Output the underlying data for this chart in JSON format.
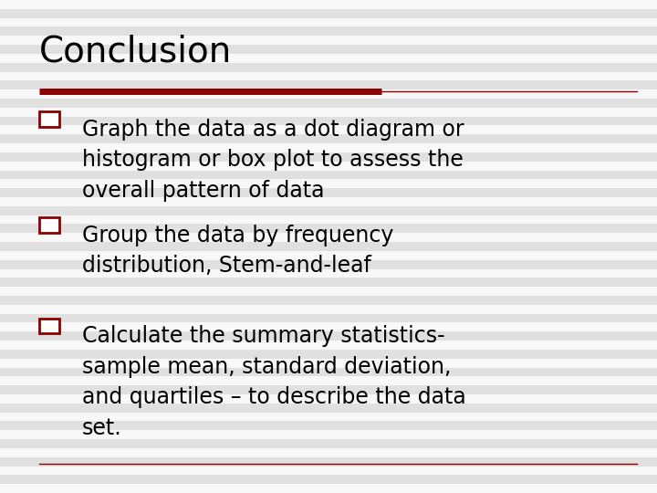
{
  "title": "Conclusion",
  "background_color": "#f0f0f0",
  "title_color": "#000000",
  "title_fontsize": 28,
  "divider_thick_color": "#8B0000",
  "divider_thin_color": "#8B0000",
  "bullet_box_edge_color": "#8B0000",
  "bullet_box_face_color": "#ffffff",
  "bullet_text_color": "#000000",
  "bullet_fontsize": 17,
  "bullets": [
    "Graph the data as a dot diagram or\nhistogram or box plot to assess the\noverall pattern of data",
    "Group the data by frequency\ndistribution, Stem-and-leaf",
    "Calculate the summary statistics-\nsample mean, standard deviation,\nand quartiles – to describe the data\nset."
  ],
  "footer_line_color": "#8B0000",
  "stripe_color_light": "#f8f8f8",
  "stripe_color_dark": "#e0e0e0",
  "stripe_count": 55
}
